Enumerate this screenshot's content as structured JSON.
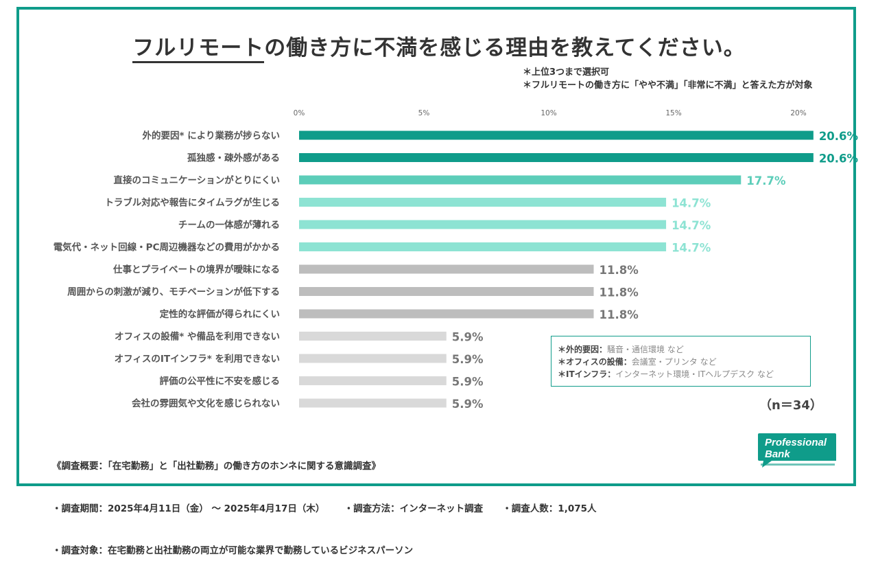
{
  "title": {
    "highlight": "フルリモート",
    "rest": "の働き方に不満を感じる理由を教えてください。"
  },
  "notes": [
    "＊上位3つまで選択可",
    "＊フルリモートの働き方に「やや不満」「非常に不満」と答えた方が対象"
  ],
  "legend": [
    {
      "term": "＊外的要因：",
      "examples": "騒音・通信環境 など"
    },
    {
      "term": "＊オフィスの設備：",
      "examples": "会議室・プリンタ など"
    },
    {
      "term": "＊ITインフラ：",
      "examples": "インターネット環境・ITヘルプデスク など"
    }
  ],
  "sample_size": "（n＝34）",
  "survey": {
    "heading": "《調査概要：「在宅勤務」と「出社勤務」の働き方のホンネに関する意識調査》",
    "period": "・調査期間：2025年4月11日（金） ～ 2025年4月17日（木）",
    "method": "・調査方法：インターネット調査",
    "count": "・調査人数：1,075人",
    "target": "・調査対象：在宅勤務と出社勤務の両立が可能な業界で勤務しているビジネスパーソン"
  },
  "logo": {
    "line1": "Professional",
    "line2": "Bank"
  },
  "colors": {
    "frame": "#0f9c8a",
    "top": "#0f9c8a",
    "second": "#5ccdb9",
    "third": "#8de3d3",
    "mid": "#bdbdbd",
    "low": "#d9d9d9"
  },
  "chart_data": {
    "type": "bar",
    "orientation": "horizontal",
    "title": "フルリモートの働き方に不満を感じる理由を教えてください。",
    "xlim": [
      0,
      20
    ],
    "xticks": [
      "0%",
      "5%",
      "10%",
      "15%",
      "20%"
    ],
    "xtick_values": [
      0,
      5,
      10,
      15,
      20
    ],
    "unit": "%",
    "categories": [
      "外的要因* により業務が捗らない",
      "孤独感・疎外感がある",
      "直接のコミュニケーションがとりにくい",
      "トラブル対応や報告にタイムラグが生じる",
      "チームの一体感が薄れる",
      "電気代・ネット回線・PC周辺機器などの費用がかかる",
      "仕事とプライベートの境界が曖昧になる",
      "周囲からの刺激が減り、モチベーションが低下する",
      "定性的な評価が得られにくい",
      "オフィスの設備* や備品を利用できない",
      "オフィスのITインフラ* を利用できない",
      "評価の公平性に不安を感じる",
      "会社の雰囲気や文化を感じられない"
    ],
    "values": [
      20.6,
      20.6,
      17.7,
      14.7,
      14.7,
      14.7,
      11.8,
      11.8,
      11.8,
      5.9,
      5.9,
      5.9,
      5.9
    ],
    "labels": [
      "20.6%",
      "20.6%",
      "17.7%",
      "14.7%",
      "14.7%",
      "14.7%",
      "11.8%",
      "11.8%",
      "11.8%",
      "5.9%",
      "5.9%",
      "5.9%",
      "5.9%"
    ],
    "tiers": [
      "top",
      "top",
      "second",
      "third",
      "third",
      "third",
      "mid",
      "mid",
      "mid",
      "low",
      "low",
      "low",
      "low"
    ]
  }
}
